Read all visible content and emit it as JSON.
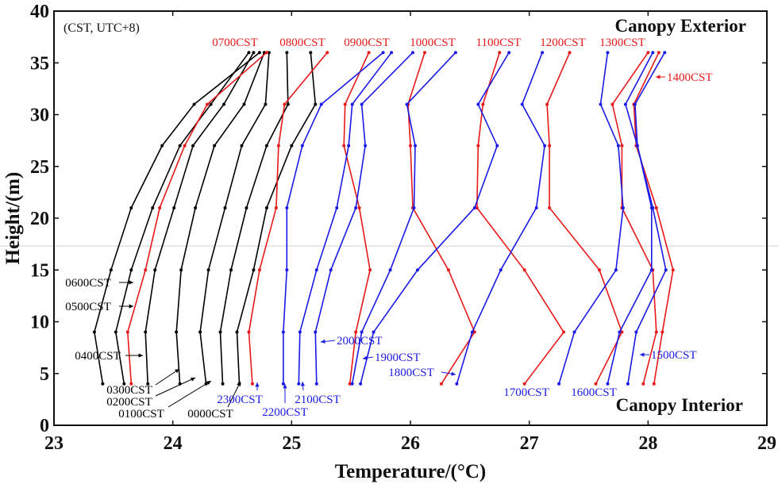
{
  "chart_data": {
    "type": "line",
    "xlabel": "Temperature/(°C)",
    "ylabel": "Height/(m)",
    "xlim": [
      23,
      29
    ],
    "ylim": [
      0,
      40
    ],
    "x_ticks": [
      "23",
      "24",
      "25",
      "26",
      "27",
      "28",
      "29"
    ],
    "y_ticks": [
      "0",
      "5",
      "10",
      "15",
      "20",
      "25",
      "30",
      "35",
      "40"
    ],
    "grid": false,
    "legend": "none",
    "note": "(CST, UTC+8)",
    "region_labels": {
      "top": "Canopy Exterior",
      "bottom": "Canopy Interior"
    },
    "heights": [
      4,
      9,
      15,
      21,
      27,
      31,
      36
    ],
    "colors": {
      "night": "#000000",
      "daytime": "#e81818",
      "afternoon_evening": "#1a1ae6"
    },
    "series": [
      {
        "name": "0000CST",
        "color": "#000000",
        "values": [
          24.56,
          24.54,
          24.68,
          24.79,
          25.0,
          25.2,
          25.16
        ]
      },
      {
        "name": "0100CST",
        "color": "#000000",
        "values": [
          24.42,
          24.4,
          24.49,
          24.62,
          24.79,
          24.97,
          24.96
        ]
      },
      {
        "name": "0200CST",
        "color": "#000000",
        "values": [
          24.28,
          24.23,
          24.3,
          24.44,
          24.58,
          24.78,
          24.81
        ]
      },
      {
        "name": "0300CST",
        "color": "#000000",
        "values": [
          24.06,
          24.03,
          24.07,
          24.19,
          24.35,
          24.6,
          24.77
        ]
      },
      {
        "name": "0400CST",
        "color": "#000000",
        "values": [
          23.79,
          23.77,
          23.85,
          24.01,
          24.17,
          24.43,
          24.68
        ]
      },
      {
        "name": "0500CST",
        "color": "#000000",
        "values": [
          23.59,
          23.52,
          23.65,
          23.83,
          24.06,
          24.32,
          24.64
        ]
      },
      {
        "name": "0600CST",
        "color": "#000000",
        "values": [
          23.41,
          23.34,
          23.48,
          23.65,
          23.91,
          24.18,
          24.73
        ]
      },
      {
        "name": "0700CST",
        "color": "#e81818",
        "values": [
          23.65,
          23.62,
          23.77,
          23.89,
          24.1,
          24.29,
          24.79
        ]
      },
      {
        "name": "0800CST",
        "color": "#e81818",
        "values": [
          24.67,
          24.64,
          24.73,
          24.87,
          24.89,
          24.94,
          25.3
        ]
      },
      {
        "name": "0900CST",
        "color": "#e81818",
        "values": [
          25.49,
          25.54,
          25.66,
          25.57,
          25.44,
          25.45,
          25.65
        ]
      },
      {
        "name": "1000CST",
        "color": "#e81818",
        "values": [
          26.26,
          26.54,
          26.32,
          26.02,
          26.0,
          25.98,
          26.12
        ]
      },
      {
        "name": "1100CST",
        "color": "#e81818",
        "values": [
          26.96,
          27.29,
          26.96,
          26.56,
          26.57,
          26.61,
          26.75
        ]
      },
      {
        "name": "1200CST",
        "color": "#e81818",
        "values": [
          27.56,
          27.78,
          27.59,
          27.17,
          27.17,
          27.15,
          27.34
        ]
      },
      {
        "name": "1300CST",
        "color": "#e81818",
        "values": [
          27.96,
          28.07,
          28.04,
          27.78,
          27.78,
          27.7,
          28.0
        ]
      },
      {
        "name": "1400CST",
        "color": "#e81818",
        "values": [
          28.05,
          28.12,
          28.21,
          28.07,
          27.9,
          27.88,
          28.09
        ]
      },
      {
        "name": "1500CST",
        "color": "#1a1ae6",
        "values": [
          27.83,
          27.9,
          28.15,
          28.04,
          27.91,
          27.89,
          28.14
        ]
      },
      {
        "name": "1600CST",
        "color": "#1a1ae6",
        "values": [
          27.66,
          27.76,
          28.03,
          28.03,
          27.91,
          27.81,
          28.04
        ]
      },
      {
        "name": "1700CST",
        "color": "#1a1ae6",
        "values": [
          27.25,
          27.38,
          27.73,
          27.79,
          27.75,
          27.6,
          27.66
        ]
      },
      {
        "name": "1800CST",
        "color": "#1a1ae6",
        "values": [
          26.39,
          26.52,
          26.76,
          27.06,
          27.13,
          26.94,
          27.11
        ]
      },
      {
        "name": "1900CST",
        "color": "#1a1ae6",
        "values": [
          25.58,
          25.69,
          26.06,
          26.54,
          26.73,
          26.57,
          26.83
        ]
      },
      {
        "name": "2000CST",
        "color": "#1a1ae6",
        "values": [
          25.51,
          25.59,
          25.83,
          26.03,
          26.04,
          25.97,
          26.38
        ]
      },
      {
        "name": "2100CST",
        "color": "#1a1ae6",
        "values": [
          25.21,
          25.2,
          25.33,
          25.54,
          25.62,
          25.59,
          26.02
        ]
      },
      {
        "name": "2200CST",
        "color": "#1a1ae6",
        "values": [
          25.06,
          25.07,
          25.21,
          25.38,
          25.48,
          25.51,
          25.84
        ]
      },
      {
        "name": "2300CST",
        "color": "#1a1ae6",
        "values": [
          24.93,
          24.93,
          24.96,
          24.96,
          25.09,
          25.25,
          25.77
        ]
      }
    ]
  }
}
